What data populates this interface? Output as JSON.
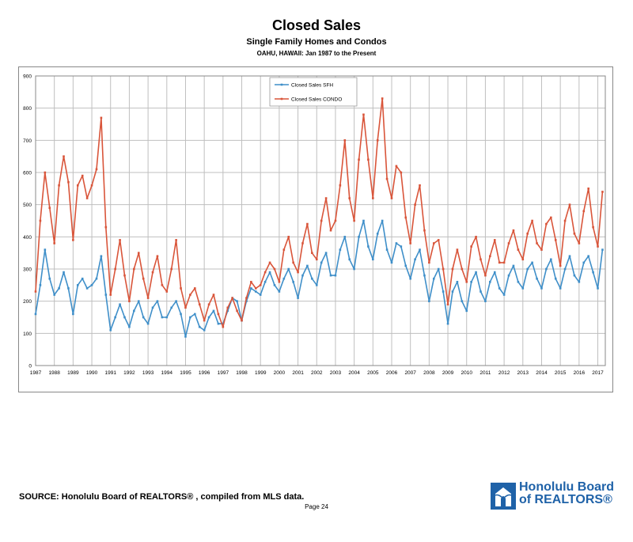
{
  "header": {
    "title": "Closed Sales",
    "subtitle": "Single Family Homes and Condos",
    "subtitle2": "OAHU, HAWAII: Jan 1987 to the Present"
  },
  "footer": {
    "source": "SOURCE:  Honolulu Board of REALTORS® , compiled from MLS data.",
    "page": "Page 24",
    "logo_line1": "Honolulu Board",
    "logo_line2": "of REALTORS®"
  },
  "colors": {
    "sfh": "#3f8fc9",
    "condo": "#d9553a",
    "grid": "#bfbfbf",
    "logo": "#1f62a8"
  },
  "chart_data": {
    "type": "line",
    "title": "Closed Sales",
    "subtitle": "Single Family Homes and Condos",
    "xlabel": "",
    "ylabel": "",
    "ylim": [
      0,
      900
    ],
    "yticks": [
      0,
      100,
      200,
      300,
      400,
      500,
      600,
      700,
      800,
      900
    ],
    "xlim": [
      1987,
      2017.4
    ],
    "xticks": [
      "1987",
      "1988",
      "1989",
      "1990",
      "1991",
      "1992",
      "1993",
      "1994",
      "1995",
      "1996",
      "1997",
      "1998",
      "1999",
      "2000",
      "2001",
      "2002",
      "2003",
      "2004",
      "2005",
      "2006",
      "2007",
      "2008",
      "2009",
      "2010",
      "2011",
      "2012",
      "2013",
      "2014",
      "2015",
      "2016",
      "2017"
    ],
    "grid": true,
    "legend": "top-center",
    "series": [
      {
        "name": "Closed Sales SFH",
        "color": "#3f8fc9",
        "x": [
          1987.0,
          1987.25,
          1987.5,
          1987.75,
          1988.0,
          1988.25,
          1988.5,
          1988.75,
          1989.0,
          1989.25,
          1989.5,
          1989.75,
          1990.0,
          1990.25,
          1990.5,
          1990.75,
          1991.0,
          1991.25,
          1991.5,
          1991.75,
          1992.0,
          1992.25,
          1992.5,
          1992.75,
          1993.0,
          1993.25,
          1993.5,
          1993.75,
          1994.0,
          1994.25,
          1994.5,
          1994.75,
          1995.0,
          1995.25,
          1995.5,
          1995.75,
          1996.0,
          1996.25,
          1996.5,
          1996.75,
          1997.0,
          1997.25,
          1997.5,
          1997.75,
          1998.0,
          1998.25,
          1998.5,
          1998.75,
          1999.0,
          1999.25,
          1999.5,
          1999.75,
          2000.0,
          2000.25,
          2000.5,
          2000.75,
          2001.0,
          2001.25,
          2001.5,
          2001.75,
          2002.0,
          2002.25,
          2002.5,
          2002.75,
          2003.0,
          2003.25,
          2003.5,
          2003.75,
          2004.0,
          2004.25,
          2004.5,
          2004.75,
          2005.0,
          2005.25,
          2005.5,
          2005.75,
          2006.0,
          2006.25,
          2006.5,
          2006.75,
          2007.0,
          2007.25,
          2007.5,
          2007.75,
          2008.0,
          2008.25,
          2008.5,
          2008.75,
          2009.0,
          2009.25,
          2009.5,
          2009.75,
          2010.0,
          2010.25,
          2010.5,
          2010.75,
          2011.0,
          2011.25,
          2011.5,
          2011.75,
          2012.0,
          2012.25,
          2012.5,
          2012.75,
          2013.0,
          2013.25,
          2013.5,
          2013.75,
          2014.0,
          2014.25,
          2014.5,
          2014.75,
          2015.0,
          2015.25,
          2015.5,
          2015.75,
          2016.0,
          2016.25,
          2016.5,
          2016.75,
          2017.0,
          2017.25
        ],
        "values": [
          160,
          250,
          360,
          270,
          220,
          240,
          290,
          240,
          160,
          250,
          270,
          240,
          250,
          270,
          340,
          220,
          110,
          150,
          190,
          150,
          120,
          170,
          200,
          150,
          130,
          180,
          200,
          150,
          150,
          180,
          200,
          160,
          90,
          150,
          160,
          120,
          110,
          150,
          170,
          130,
          130,
          170,
          210,
          200,
          140,
          200,
          240,
          230,
          220,
          260,
          290,
          250,
          230,
          270,
          300,
          260,
          210,
          280,
          310,
          270,
          250,
          320,
          350,
          280,
          280,
          360,
          400,
          330,
          300,
          400,
          450,
          370,
          330,
          410,
          450,
          360,
          320,
          380,
          370,
          310,
          270,
          330,
          360,
          280,
          200,
          270,
          300,
          230,
          130,
          230,
          260,
          200,
          170,
          260,
          290,
          230,
          200,
          260,
          290,
          240,
          220,
          280,
          310,
          260,
          240,
          300,
          320,
          270,
          240,
          300,
          330,
          270,
          240,
          300,
          340,
          280,
          260,
          320,
          340,
          290,
          240,
          360
        ]
      },
      {
        "name": "Closed Sales CONDO",
        "color": "#d9553a",
        "x": [
          1987.0,
          1987.25,
          1987.5,
          1987.75,
          1988.0,
          1988.25,
          1988.5,
          1988.75,
          1989.0,
          1989.25,
          1989.5,
          1989.75,
          1990.0,
          1990.25,
          1990.5,
          1990.75,
          1991.0,
          1991.25,
          1991.5,
          1991.75,
          1992.0,
          1992.25,
          1992.5,
          1992.75,
          1993.0,
          1993.25,
          1993.5,
          1993.75,
          1994.0,
          1994.25,
          1994.5,
          1994.75,
          1995.0,
          1995.25,
          1995.5,
          1995.75,
          1996.0,
          1996.25,
          1996.5,
          1996.75,
          1997.0,
          1997.25,
          1997.5,
          1997.75,
          1998.0,
          1998.25,
          1998.5,
          1998.75,
          1999.0,
          1999.25,
          1999.5,
          1999.75,
          2000.0,
          2000.25,
          2000.5,
          2000.75,
          2001.0,
          2001.25,
          2001.5,
          2001.75,
          2002.0,
          2002.25,
          2002.5,
          2002.75,
          2003.0,
          2003.25,
          2003.5,
          2003.75,
          2004.0,
          2004.25,
          2004.5,
          2004.75,
          2005.0,
          2005.25,
          2005.5,
          2005.75,
          2006.0,
          2006.25,
          2006.5,
          2006.75,
          2007.0,
          2007.25,
          2007.5,
          2007.75,
          2008.0,
          2008.25,
          2008.5,
          2008.75,
          2009.0,
          2009.25,
          2009.5,
          2009.75,
          2010.0,
          2010.25,
          2010.5,
          2010.75,
          2011.0,
          2011.25,
          2011.5,
          2011.75,
          2012.0,
          2012.25,
          2012.5,
          2012.75,
          2013.0,
          2013.25,
          2013.5,
          2013.75,
          2014.0,
          2014.25,
          2014.5,
          2014.75,
          2015.0,
          2015.25,
          2015.5,
          2015.75,
          2016.0,
          2016.25,
          2016.5,
          2016.75,
          2017.0,
          2017.25
        ],
        "values": [
          230,
          450,
          600,
          490,
          380,
          560,
          650,
          570,
          390,
          560,
          590,
          520,
          560,
          610,
          770,
          430,
          220,
          300,
          390,
          280,
          200,
          300,
          350,
          270,
          210,
          290,
          340,
          250,
          230,
          300,
          390,
          240,
          180,
          220,
          240,
          190,
          140,
          190,
          220,
          160,
          120,
          180,
          210,
          170,
          140,
          210,
          260,
          240,
          250,
          290,
          320,
          300,
          260,
          360,
          400,
          320,
          290,
          380,
          440,
          350,
          330,
          450,
          520,
          420,
          450,
          560,
          700,
          520,
          450,
          640,
          780,
          640,
          520,
          700,
          830,
          580,
          520,
          620,
          600,
          460,
          380,
          500,
          560,
          420,
          320,
          380,
          390,
          300,
          190,
          300,
          360,
          300,
          260,
          370,
          400,
          330,
          280,
          340,
          390,
          320,
          320,
          380,
          420,
          360,
          330,
          410,
          450,
          380,
          360,
          440,
          460,
          390,
          310,
          450,
          500,
          410,
          380,
          480,
          550,
          430,
          370,
          540
        ]
      }
    ]
  }
}
